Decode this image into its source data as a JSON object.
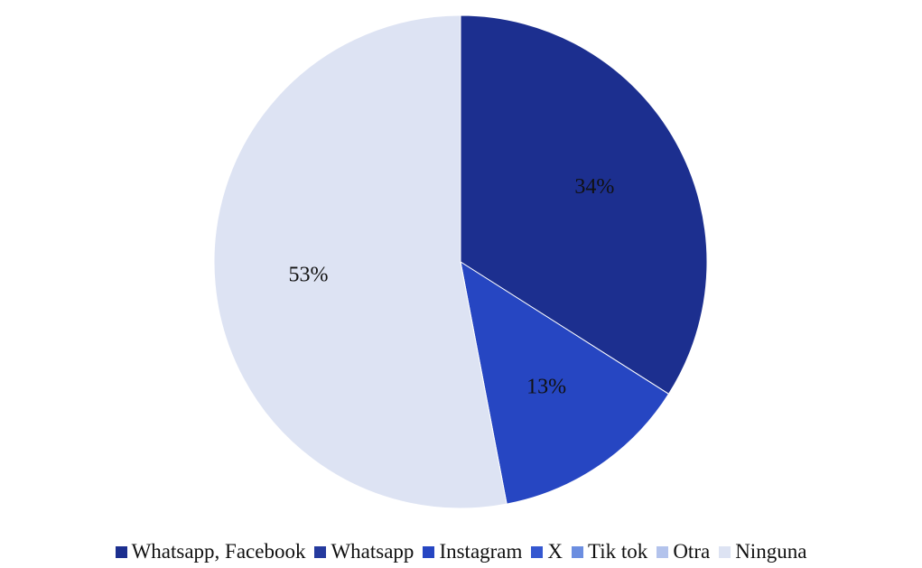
{
  "chart_data": {
    "type": "pie",
    "categories": [
      "Whatsapp, Facebook",
      "Whatsapp",
      "Instagram",
      "X",
      "Tik tok",
      "Otra",
      "Ninguna"
    ],
    "values": [
      34,
      0,
      13,
      0,
      0,
      0,
      53
    ],
    "value_labels": [
      "34%",
      "",
      "13%",
      "",
      "",
      "",
      "53%"
    ],
    "colors": [
      "#1c2f8f",
      "#253a9e",
      "#2646c2",
      "#3457d0",
      "#6c8ee0",
      "#b3c3ec",
      "#dde3f3"
    ],
    "legend_position": "bottom"
  }
}
